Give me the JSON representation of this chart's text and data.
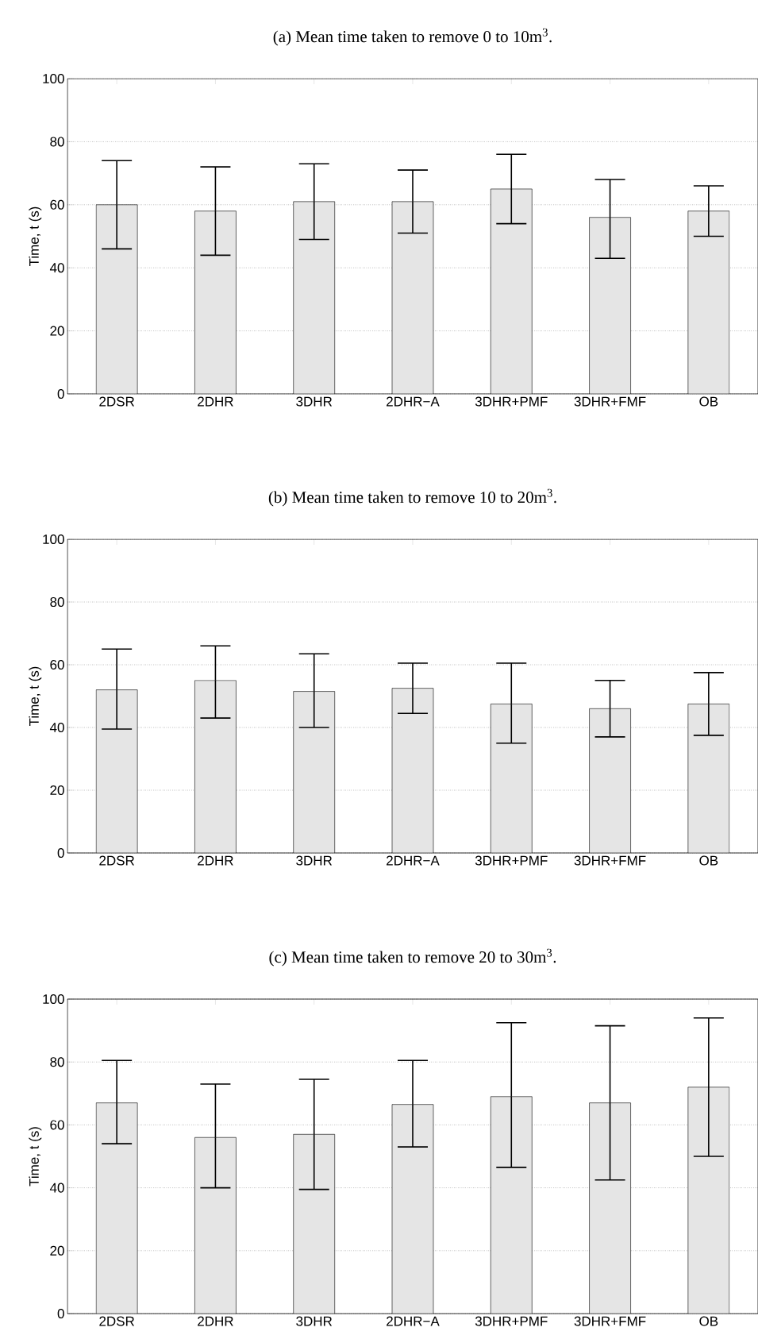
{
  "chart_data": [
    {
      "type": "bar",
      "title": "(a) Mean time taken to remove 0 to 10m$^{3}$.",
      "ylabel": "Time, t (s)",
      "categories": [
        "2DSR",
        "2DHR",
        "3DHR",
        "2DHR−A",
        "3DHR+PMF",
        "3DHR+FMF",
        "OB"
      ],
      "values": [
        60,
        58,
        61,
        61,
        65,
        56,
        58
      ],
      "errors": [
        [
          46,
          74
        ],
        [
          44,
          72
        ],
        [
          49,
          73
        ],
        [
          51,
          71
        ],
        [
          54,
          76
        ],
        [
          43,
          68
        ],
        [
          50,
          66
        ]
      ],
      "color": "#e5e5e5",
      "ylim": [
        0,
        100
      ],
      "yticks": [
        0,
        20,
        40,
        60,
        80,
        100
      ],
      "grid": "y"
    },
    {
      "type": "bar",
      "title": "(b) Mean time taken to remove 10 to 20m$^{3}$.",
      "ylabel": "Time, t (s)",
      "categories": [
        "2DSR",
        "2DHR",
        "3DHR",
        "2DHR−A",
        "3DHR+PMF",
        "3DHR+FMF",
        "OB"
      ],
      "values": [
        52,
        55,
        51.5,
        52.5,
        47.5,
        46,
        47.5
      ],
      "errors": [
        [
          39.5,
          65
        ],
        [
          43,
          66
        ],
        [
          40,
          63.5
        ],
        [
          44.5,
          60.5
        ],
        [
          35,
          60.5
        ],
        [
          37,
          55
        ],
        [
          37.5,
          57.5
        ]
      ],
      "color": "#e5e5e5",
      "ylim": [
        0,
        100
      ],
      "yticks": [
        0,
        20,
        40,
        60,
        80,
        100
      ],
      "grid": "y"
    },
    {
      "type": "bar",
      "title": "(c) Mean time taken to remove 20 to 30m$^{3}$.",
      "ylabel": "Time, t (s)",
      "categories": [
        "2DSR",
        "2DHR",
        "3DHR",
        "2DHR−A",
        "3DHR+PMF",
        "3DHR+FMF",
        "OB"
      ],
      "values": [
        67,
        56,
        57,
        66.5,
        69,
        67,
        72
      ],
      "errors": [
        [
          54,
          80.5
        ],
        [
          40,
          73
        ],
        [
          39.5,
          74.5
        ],
        [
          53,
          80.5
        ],
        [
          46.5,
          92.5
        ],
        [
          42.5,
          91.5
        ],
        [
          50,
          94
        ]
      ],
      "color": "#e5e5e5",
      "ylim": [
        0,
        100
      ],
      "yticks": [
        0,
        20,
        40,
        60,
        80,
        100
      ],
      "grid": "y"
    }
  ]
}
